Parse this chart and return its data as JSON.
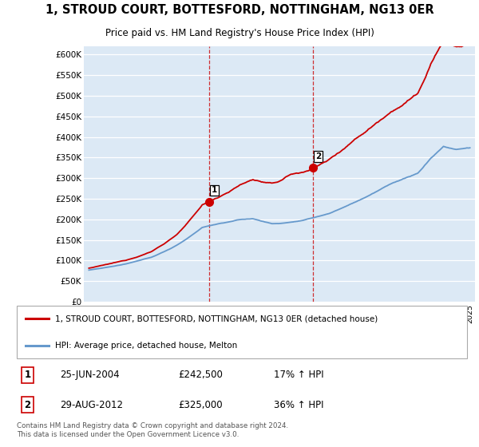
{
  "title": "1, STROUD COURT, BOTTESFORD, NOTTINGHAM, NG13 0ER",
  "subtitle": "Price paid vs. HM Land Registry's House Price Index (HPI)",
  "legend_line1": "1, STROUD COURT, BOTTESFORD, NOTTINGHAM, NG13 0ER (detached house)",
  "legend_line2": "HPI: Average price, detached house, Melton",
  "footer": "Contains HM Land Registry data © Crown copyright and database right 2024.\nThis data is licensed under the Open Government Licence v3.0.",
  "sale1_label": "1",
  "sale1_date": "25-JUN-2004",
  "sale1_price": "£242,500",
  "sale1_hpi": "17% ↑ HPI",
  "sale2_label": "2",
  "sale2_date": "29-AUG-2012",
  "sale2_price": "£325,000",
  "sale2_hpi": "36% ↑ HPI",
  "red_color": "#cc0000",
  "blue_color": "#6699cc",
  "plot_bg": "#dce9f5",
  "vline_color": "#cc0000",
  "ylim": [
    0,
    620000
  ],
  "yticks": [
    0,
    50000,
    100000,
    150000,
    200000,
    250000,
    300000,
    350000,
    400000,
    450000,
    500000,
    550000,
    600000
  ],
  "sale1_x": 2004.48,
  "sale1_y": 242500,
  "sale2_x": 2012.66,
  "sale2_y": 325000,
  "xlim_left": 1994.6,
  "xlim_right": 2025.4
}
